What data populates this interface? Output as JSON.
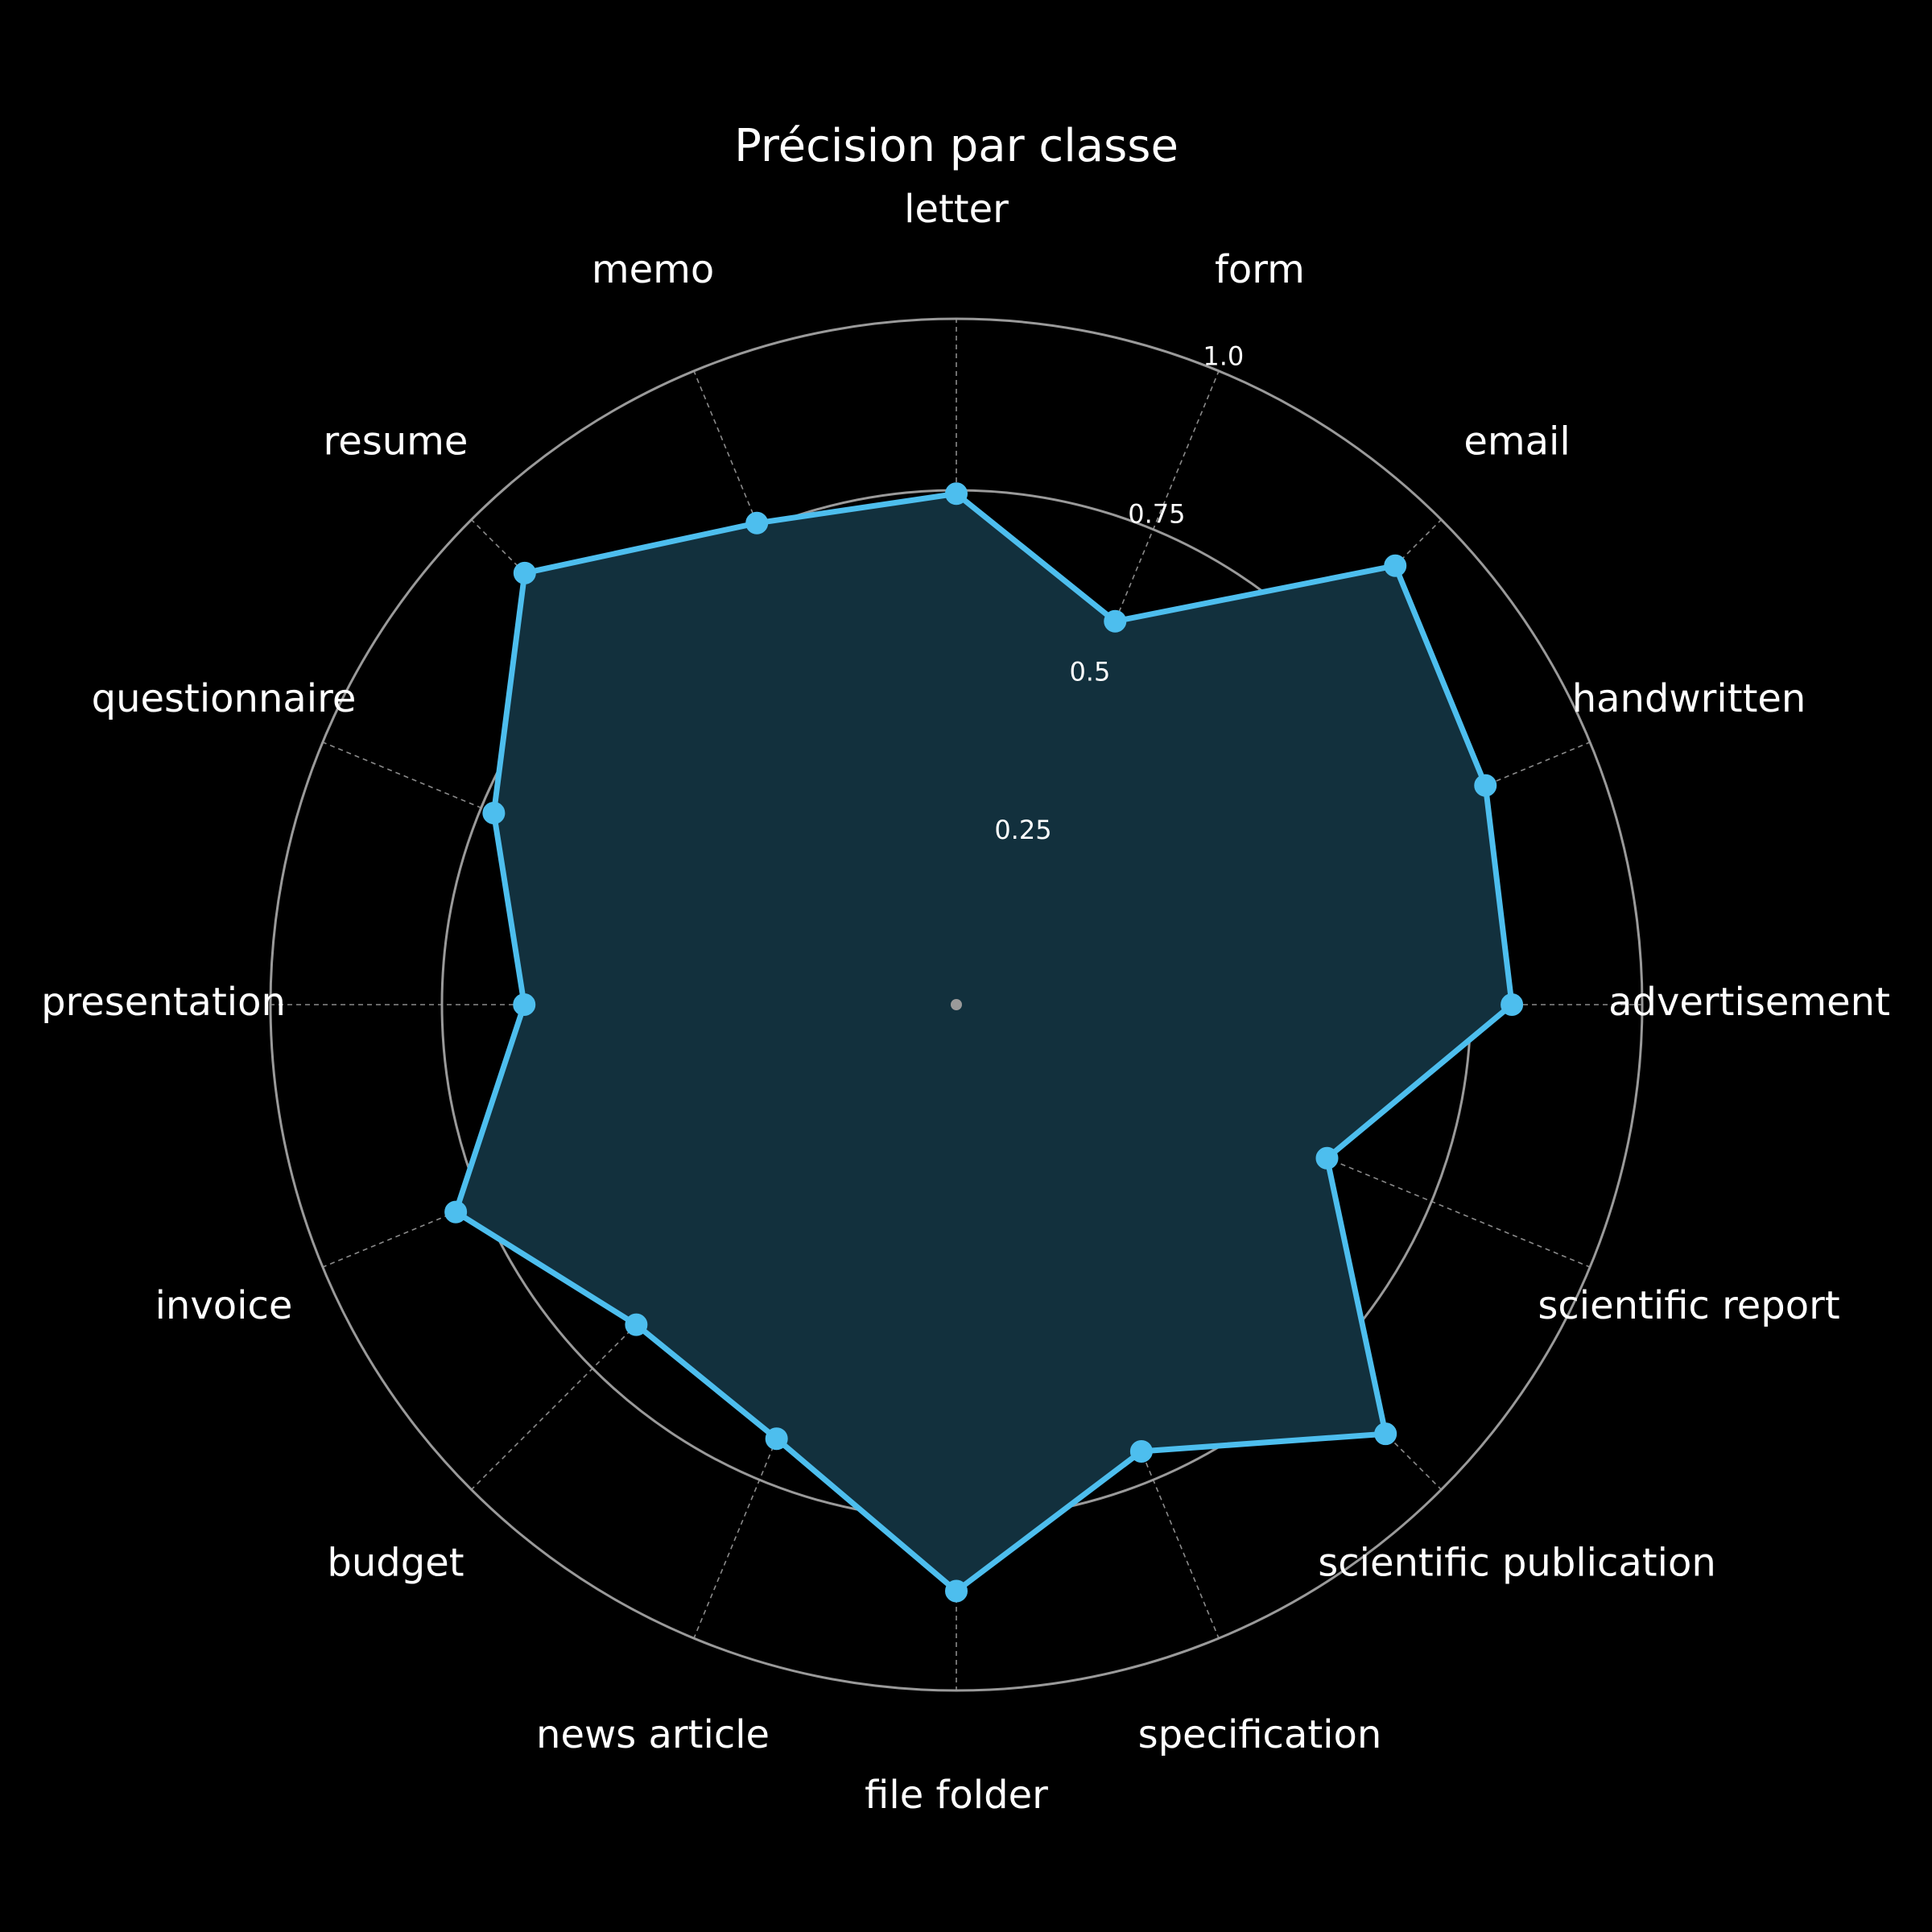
{
  "chart_data": {
    "type": "radar",
    "title": "Précision par classe",
    "categories": [
      "letter",
      "form",
      "email",
      "handwritten",
      "advertisement",
      "scientific report",
      "scientific publication",
      "specification",
      "file folder",
      "news article",
      "budget",
      "invoice",
      "presentation",
      "questionnaire",
      "resume",
      "memo"
    ],
    "series": [
      {
        "values": [
          0.745,
          0.605,
          0.905,
          0.835,
          0.81,
          0.585,
          0.885,
          0.705,
          0.855,
          0.685,
          0.66,
          0.79,
          0.63,
          0.73,
          0.89,
          0.76
        ]
      }
    ],
    "rlim": [
      0,
      1.0
    ],
    "rticks": [
      0.25,
      0.5,
      0.75,
      1.0
    ],
    "rtick_labels": [
      "0.25",
      "0.5",
      "0.75",
      "1.0"
    ],
    "grid": true,
    "colors": {
      "background": "#000000",
      "line": "#4dbeee",
      "fill": "#12303d",
      "grid": "#9a9a9a",
      "text": "#ffffff"
    }
  }
}
